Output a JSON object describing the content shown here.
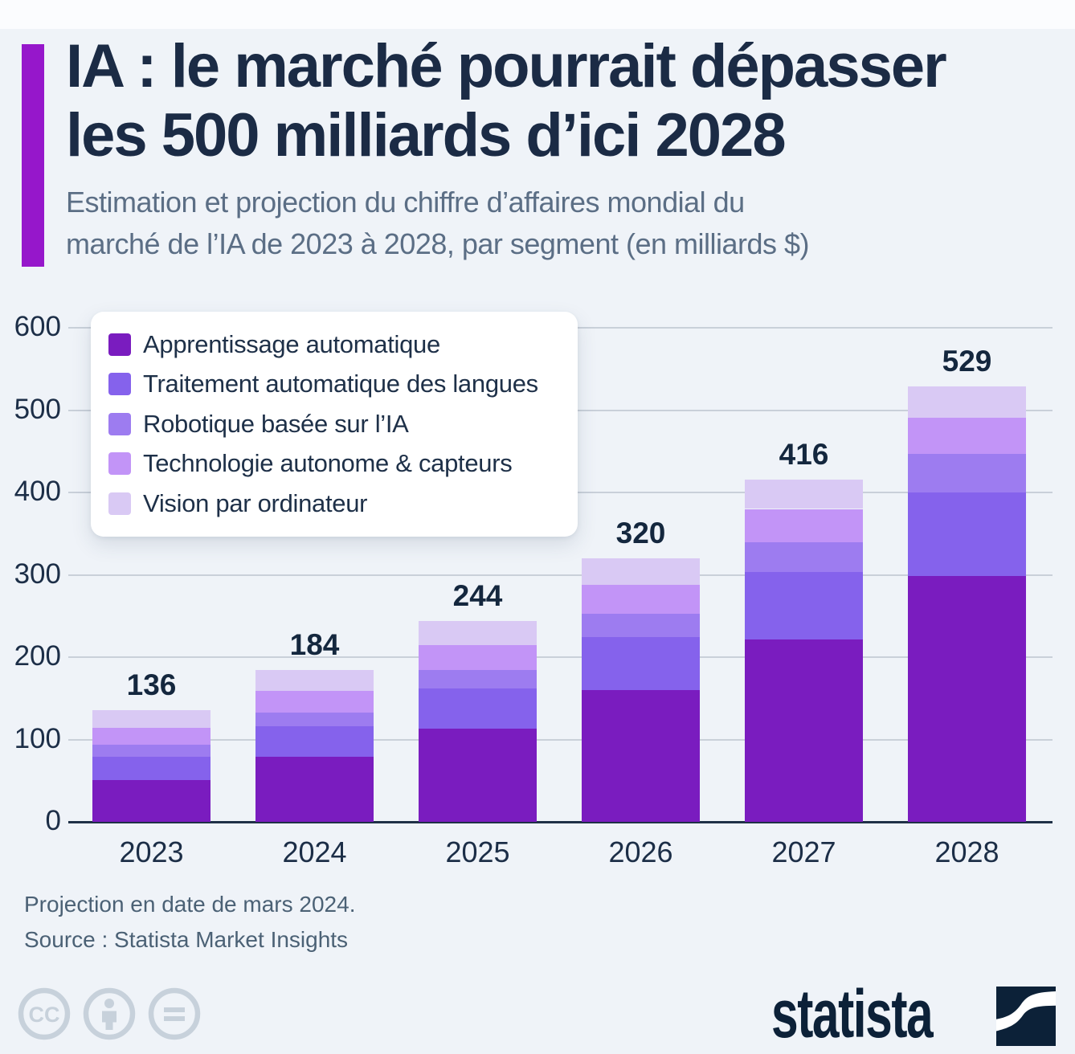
{
  "header": {
    "title_line1": "IA : le marché pourrait dépasser",
    "title_line2": "les 500 milliards d’ici 2028",
    "subtitle_line1": "Estimation et projection du chiffre d’affaires mondial du",
    "subtitle_line2": "marché de l’IA de 2023 à 2028, par segment (en milliards $)"
  },
  "chart_data": {
    "type": "bar",
    "stacked": true,
    "title": "IA : le marché pourrait dépasser les 500 milliards d’ici 2028",
    "unit": "milliards $",
    "categories": [
      "2023",
      "2024",
      "2025",
      "2026",
      "2027",
      "2028"
    ],
    "series": [
      {
        "name": "Apprentissage automatique",
        "color": "#7a1cbf",
        "values": [
          51,
          79,
          113,
          160,
          221,
          299
        ]
      },
      {
        "name": "Traitement automatique des langues",
        "color": "#8562ec",
        "values": [
          28,
          37,
          49,
          64,
          82,
          101
        ]
      },
      {
        "name": "Robotique basée sur l’IA",
        "color": "#9d7cf0",
        "values": [
          15,
          17,
          22,
          29,
          37,
          47
        ]
      },
      {
        "name": "Technologie autonome & capteurs",
        "color": "#c294f7",
        "values": [
          20,
          26,
          31,
          35,
          40,
          44
        ]
      },
      {
        "name": "Vision par ordinateur",
        "color": "#d9c9f4",
        "values": [
          22,
          25,
          29,
          32,
          36,
          38
        ]
      }
    ],
    "totals": [
      136,
      184,
      244,
      320,
      416,
      529
    ],
    "y_ticks": [
      0,
      100,
      200,
      300,
      400,
      500,
      600
    ],
    "ylim": [
      0,
      600
    ],
    "grid": true,
    "legend_position": "top-left"
  },
  "footer": {
    "note": "Projection en date de mars 2024.",
    "source": "Source : Statista Market Insights"
  },
  "branding": {
    "logo_text": "statista",
    "license_icons": [
      "cc",
      "by",
      "nd"
    ]
  },
  "colors": {
    "background": "#eff3f8",
    "accent_bar": "#9617cb",
    "title_text": "#1b2b45",
    "subtitle_text": "#5b6e85",
    "axis_text": "#1c2e47",
    "gridline": "#c9d0d9",
    "axis_line": "#1f3147",
    "footer_text": "#4b6175",
    "license_icon": "#c7d1db",
    "brand_navy": "#0c2138"
  }
}
